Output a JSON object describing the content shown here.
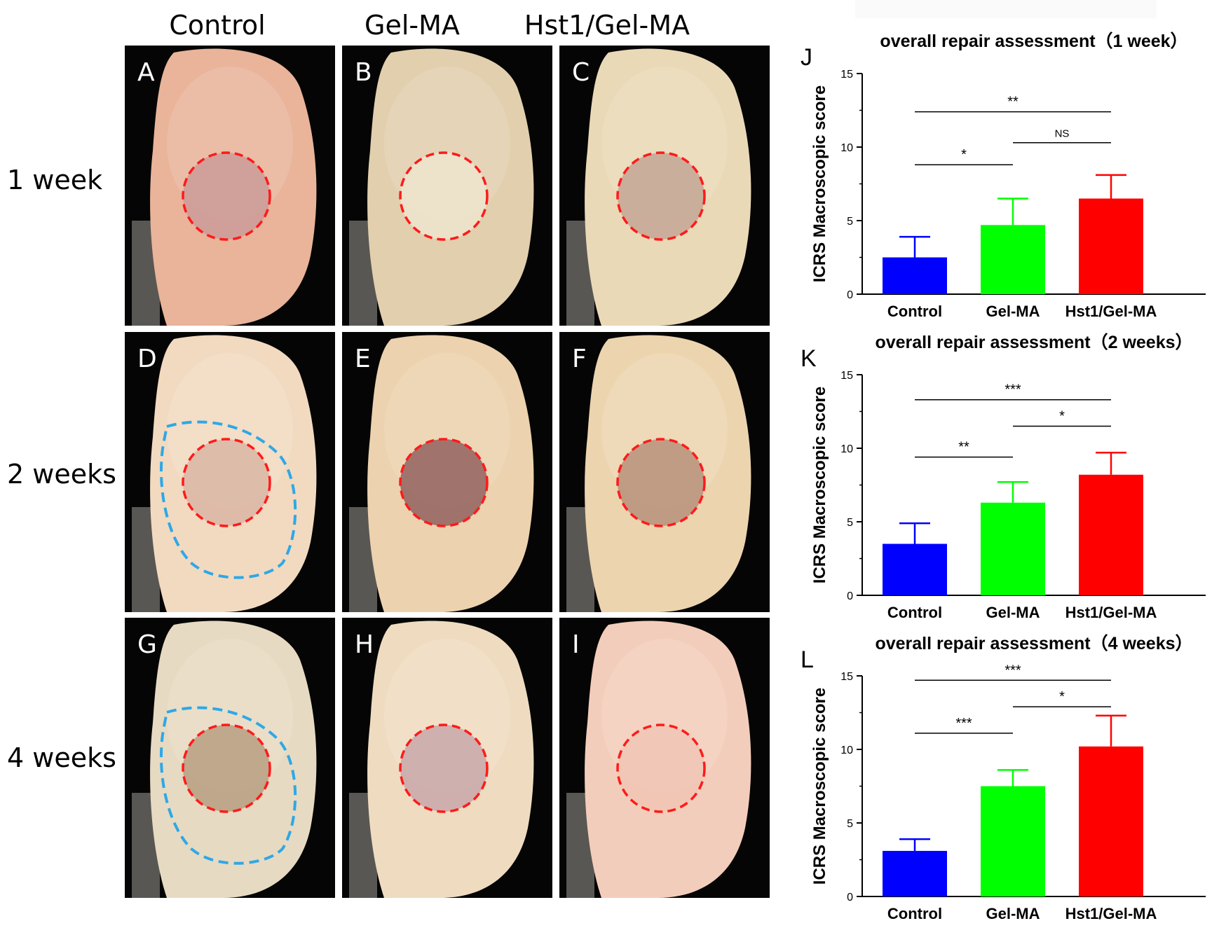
{
  "column_labels": [
    "Control",
    "Gel-MA",
    "Hst1/Gel-MA"
  ],
  "row_labels": [
    "1 week",
    "2 weeks",
    "4 weeks"
  ],
  "photos": [
    {
      "letter": "A",
      "tissue": "#e9b49a",
      "defect": "#c99a98",
      "blue_outline": false
    },
    {
      "letter": "B",
      "tissue": "#e2cfae",
      "defect": "#efe6cf",
      "blue_outline": false
    },
    {
      "letter": "C",
      "tissue": "#ead9b7",
      "defect": "#c2a393",
      "blue_outline": false
    },
    {
      "letter": "D",
      "tissue": "#f2dac0",
      "defect": "#d8b3a2",
      "blue_outline": true
    },
    {
      "letter": "E",
      "tissue": "#ecd2ae",
      "defect": "#8c5a5a",
      "blue_outline": false
    },
    {
      "letter": "F",
      "tissue": "#ecd4af",
      "defect": "#b48c78",
      "blue_outline": false
    },
    {
      "letter": "G",
      "tissue": "#e7dac2",
      "defect": "#b49a7c",
      "blue_outline": true
    },
    {
      "letter": "H",
      "tissue": "#efdcc0",
      "defect": "#c6a4a8",
      "blue_outline": false
    },
    {
      "letter": "I",
      "tissue": "#f3cdbb",
      "defect": "#f0c4b4",
      "blue_outline": false
    }
  ],
  "colors": {
    "control": "#0000ff",
    "gelma": "#00ff00",
    "hst1": "#ff0000",
    "red_circle": "#ff1a1a",
    "blue_outline": "#2ea8e6"
  },
  "chart_data": [
    {
      "type": "bar",
      "letter": "J",
      "title": "overall repair assessment（1 week）",
      "ylabel": "ICRS Macroscopic score",
      "categories": [
        "Control",
        "Gel-MA",
        "Hst1/Gel-MA"
      ],
      "values": [
        2.5,
        4.7,
        6.5
      ],
      "errors": [
        1.4,
        1.8,
        1.6
      ],
      "ylim": [
        0,
        15
      ],
      "yticks": [
        0,
        5,
        10,
        15
      ],
      "significance": [
        {
          "from": 0,
          "to": 2,
          "y": 12.4,
          "label": "**"
        },
        {
          "from": 1,
          "to": 2,
          "y": 10.3,
          "label": "NS"
        },
        {
          "from": 0,
          "to": 1,
          "y": 8.8,
          "label": "*"
        }
      ]
    },
    {
      "type": "bar",
      "letter": "K",
      "title": "overall repair assessment（2 weeks）",
      "ylabel": "ICRS Macroscopic score",
      "categories": [
        "Control",
        "Gel-MA",
        "Hst1/Gel-MA"
      ],
      "values": [
        3.5,
        6.3,
        8.2
      ],
      "errors": [
        1.4,
        1.4,
        1.5
      ],
      "ylim": [
        0,
        15
      ],
      "yticks": [
        0,
        5,
        10,
        15
      ],
      "significance": [
        {
          "from": 0,
          "to": 2,
          "y": 13.3,
          "label": "***"
        },
        {
          "from": 1,
          "to": 2,
          "y": 11.5,
          "label": "*"
        },
        {
          "from": 0,
          "to": 1,
          "y": 9.4,
          "label": "**"
        }
      ]
    },
    {
      "type": "bar",
      "letter": "L",
      "title": "overall repair assessment（4 weeks）",
      "ylabel": "ICRS Macroscopic score",
      "categories": [
        "Control",
        "Gel-MA",
        "Hst1/Gel-MA"
      ],
      "values": [
        3.1,
        7.5,
        10.2
      ],
      "errors": [
        0.8,
        1.1,
        2.1
      ],
      "ylim": [
        0,
        15
      ],
      "yticks": [
        0,
        5,
        10,
        15
      ],
      "significance": [
        {
          "from": 0,
          "to": 2,
          "y": 14.7,
          "label": "***"
        },
        {
          "from": 1,
          "to": 2,
          "y": 12.9,
          "label": "*"
        },
        {
          "from": 0,
          "to": 1,
          "y": 11.1,
          "label": "***"
        }
      ]
    }
  ]
}
